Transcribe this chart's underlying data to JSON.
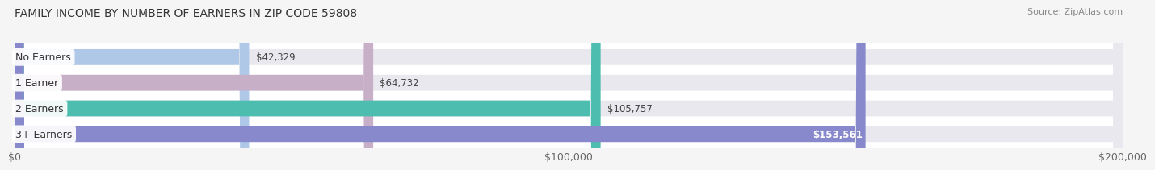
{
  "title": "FAMILY INCOME BY NUMBER OF EARNERS IN ZIP CODE 59808",
  "source": "Source: ZipAtlas.com",
  "categories": [
    "No Earners",
    "1 Earner",
    "2 Earners",
    "3+ Earners"
  ],
  "values": [
    42329,
    64732,
    105757,
    153561
  ],
  "labels": [
    "$42,329",
    "$64,732",
    "$105,757",
    "$153,561"
  ],
  "bar_colors": [
    "#afc8e8",
    "#c8afc8",
    "#4dbdb0",
    "#8888cc"
  ],
  "bar_track_color": "#e8e8ee",
  "bg_color": "#ffffff",
  "fig_bg_color": "#f5f5f5",
  "xlim": [
    0,
    200000
  ],
  "xtick_labels": [
    "$0",
    "$100,000",
    "$200,000"
  ],
  "xtick_values": [
    0,
    100000,
    200000
  ],
  "title_fontsize": 10,
  "source_fontsize": 8,
  "tick_fontsize": 9,
  "bar_label_fontsize": 8.5,
  "cat_label_fontsize": 9,
  "bar_height": 0.62,
  "rounding_size": 1800,
  "label_inside_color": "white",
  "label_outside_color": "#444444"
}
